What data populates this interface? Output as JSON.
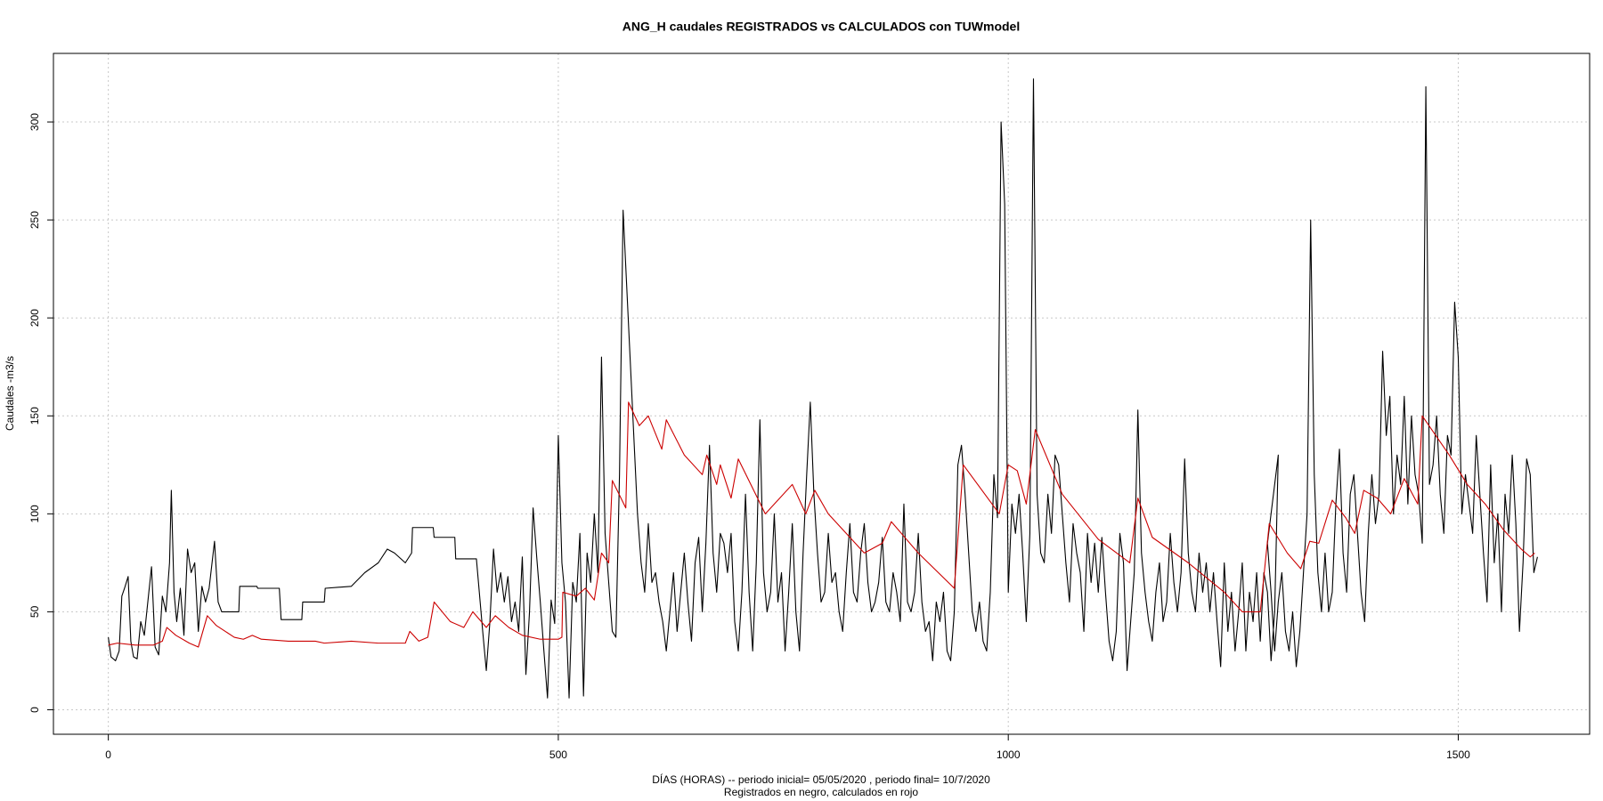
{
  "chart_data": {
    "type": "line",
    "title": "ANG_H caudales REGISTRADOS vs CALCULADOS con TUWmodel",
    "xlabel": "DÍAS (HORAS) --  periodo inicial= 05/05/2020 ,  periodo final= 10/7/2020",
    "caption": "Registrados en negro, calculados en rojo",
    "ylabel": "Caudales -m3/s",
    "xlim": [
      -61,
      1646
    ],
    "ylim": [
      -12.5,
      335
    ],
    "xticks": [
      0,
      500,
      1000,
      1500
    ],
    "yticks": [
      0,
      50,
      100,
      150,
      200,
      250,
      300
    ],
    "grid": true,
    "series": [
      {
        "color": "#000000",
        "x": [
          0,
          3,
          8,
          12,
          15,
          18,
          22,
          25,
          28,
          32,
          36,
          40,
          45,
          48,
          52,
          56,
          60,
          64,
          68,
          70,
          73,
          76,
          80,
          84,
          88,
          92,
          96,
          100,
          104,
          108,
          112,
          118,
          122,
          126,
          145,
          146,
          165,
          166,
          190,
          192,
          215,
          216,
          240,
          241,
          270,
          285,
          300,
          310,
          318,
          330,
          337,
          338,
          361,
          362,
          385,
          386,
          409,
          416,
          420,
          424,
          428,
          432,
          436,
          440,
          444,
          448,
          452,
          456,
          460,
          464,
          468,
          472,
          476,
          480,
          484,
          488,
          492,
          496,
          500,
          504,
          508,
          512,
          516,
          520,
          524,
          528,
          532,
          536,
          540,
          544,
          548,
          552,
          556,
          560,
          564,
          568,
          572,
          588,
          592,
          596,
          600,
          604,
          608,
          612,
          616,
          620,
          624,
          628,
          632,
          636,
          640,
          644,
          648,
          652,
          656,
          660,
          664,
          668,
          672,
          676,
          680,
          684,
          688,
          692,
          696,
          700,
          704,
          708,
          712,
          716,
          720,
          724,
          728,
          732,
          736,
          740,
          744,
          748,
          752,
          756,
          760,
          764,
          768,
          772,
          776,
          780,
          784,
          788,
          792,
          796,
          800,
          804,
          808,
          812,
          816,
          820,
          824,
          828,
          832,
          836,
          840,
          844,
          848,
          852,
          856,
          860,
          864,
          868,
          872,
          876,
          880,
          884,
          888,
          892,
          896,
          900,
          904,
          908,
          912,
          916,
          920,
          924,
          928,
          932,
          936,
          940,
          944,
          948,
          952,
          956,
          960,
          964,
          968,
          972,
          976,
          980,
          984,
          988,
          992,
          996,
          1000,
          1004,
          1008,
          1012,
          1016,
          1020,
          1024,
          1028,
          1032,
          1036,
          1040,
          1044,
          1048,
          1052,
          1056,
          1060,
          1064,
          1068,
          1072,
          1076,
          1080,
          1084,
          1088,
          1092,
          1096,
          1100,
          1104,
          1108,
          1112,
          1116,
          1120,
          1124,
          1128,
          1132,
          1136,
          1140,
          1144,
          1148,
          1152,
          1156,
          1160,
          1164,
          1168,
          1172,
          1176,
          1180,
          1184,
          1188,
          1192,
          1196,
          1200,
          1204,
          1208,
          1212,
          1216,
          1220,
          1224,
          1228,
          1232,
          1236,
          1240,
          1244,
          1248,
          1252,
          1256,
          1260,
          1264,
          1268,
          1272,
          1276,
          1280,
          1284,
          1288,
          1292,
          1296,
          1300,
          1288,
          1292,
          1296,
          1300,
          1304,
          1308,
          1312,
          1316,
          1320,
          1324,
          1328,
          1332,
          1336,
          1340,
          1344,
          1348,
          1352,
          1356,
          1360,
          1364,
          1368,
          1372,
          1376,
          1380,
          1384,
          1388,
          1392,
          1396,
          1400,
          1404,
          1408,
          1412,
          1416,
          1420,
          1424,
          1428,
          1432,
          1436,
          1440,
          1444,
          1448,
          1452,
          1456,
          1460,
          1464,
          1468,
          1472,
          1476,
          1480,
          1484,
          1488,
          1492,
          1496,
          1500,
          1504,
          1508,
          1512,
          1516,
          1520,
          1524,
          1528,
          1532,
          1536,
          1540,
          1544,
          1548,
          1552,
          1556,
          1560,
          1564,
          1568,
          1572,
          1576,
          1580,
          1584,
          1588
        ],
        "values": [
          37,
          27,
          25,
          30,
          58,
          62,
          68,
          35,
          27,
          26,
          45,
          38,
          60,
          73,
          32,
          28,
          58,
          50,
          75,
          112,
          60,
          45,
          62,
          38,
          82,
          70,
          75,
          40,
          63,
          55,
          62,
          86,
          55,
          50,
          50,
          63,
          63,
          62,
          62,
          46,
          46,
          55,
          55,
          62,
          63,
          70,
          75,
          82,
          80,
          75,
          80,
          93,
          93,
          88,
          88,
          77,
          77,
          40,
          20,
          45,
          82,
          60,
          70,
          55,
          68,
          45,
          55,
          40,
          78,
          18,
          50,
          103,
          78,
          55,
          30,
          6,
          56,
          44,
          140,
          75,
          55,
          6,
          65,
          55,
          90,
          7,
          80,
          65,
          100,
          70,
          180,
          90,
          65,
          40,
          37,
          120,
          255,
          100,
          75,
          60,
          95,
          65,
          70,
          55,
          45,
          30,
          50,
          70,
          40,
          60,
          80,
          55,
          35,
          75,
          88,
          50,
          85,
          135,
          80,
          60,
          90,
          85,
          70,
          90,
          45,
          30,
          60,
          110,
          60,
          30,
          75,
          148,
          70,
          50,
          60,
          100,
          55,
          70,
          30,
          60,
          95,
          50,
          30,
          80,
          120,
          157,
          110,
          80,
          55,
          60,
          90,
          65,
          70,
          50,
          40,
          70,
          95,
          60,
          55,
          80,
          95,
          65,
          50,
          55,
          65,
          88,
          55,
          50,
          70,
          60,
          45,
          105,
          55,
          50,
          60,
          90,
          55,
          40,
          45,
          25,
          55,
          45,
          60,
          30,
          25,
          50,
          125,
          135,
          110,
          80,
          50,
          40,
          55,
          35,
          30,
          60,
          120,
          98,
          300,
          258,
          60,
          105,
          90,
          110,
          80,
          45,
          90,
          322,
          110,
          80,
          75,
          110,
          90,
          130,
          125,
          100,
          75,
          55,
          95,
          80,
          70,
          40,
          90,
          65,
          85,
          60,
          88,
          60,
          35,
          25,
          40,
          90,
          75,
          20,
          45,
          70,
          153,
          80,
          60,
          45,
          35,
          60,
          75,
          45,
          55,
          90,
          65,
          50,
          70,
          128,
          80,
          60,
          50,
          80,
          60,
          75,
          50,
          70,
          45,
          22,
          75,
          40,
          60,
          30,
          50,
          75,
          30,
          60,
          45,
          70,
          35,
          70,
          60,
          25,
          50,
          130,
          85,
          60,
          30,
          55,
          70,
          40,
          30,
          50,
          22,
          40,
          70,
          100,
          250,
          120,
          70,
          50,
          80,
          50,
          60,
          105,
          133,
          80,
          60,
          110,
          120,
          90,
          60,
          45,
          90,
          120,
          95,
          110,
          183,
          140,
          160,
          100,
          130,
          115,
          160,
          105,
          150,
          120,
          110,
          85,
          318,
          115,
          125,
          150,
          110,
          90,
          140,
          130,
          208,
          180,
          100,
          120,
          105,
          90,
          140,
          110,
          80,
          55,
          125,
          75,
          100,
          50,
          110,
          90,
          130,
          95,
          40,
          75,
          128,
          120,
          70,
          78
        ]
      },
      {
        "color": "#cc0000",
        "x": [
          0,
          10,
          30,
          50,
          60,
          65,
          75,
          90,
          100,
          110,
          120,
          130,
          140,
          150,
          160,
          170,
          200,
          230,
          240,
          270,
          300,
          330,
          335,
          345,
          355,
          362,
          380,
          395,
          405,
          420,
          430,
          445,
          460,
          480,
          500,
          504,
          505,
          520,
          530,
          540,
          548,
          556,
          560,
          575,
          578,
          590,
          600,
          615,
          620,
          640,
          660,
          665,
          676,
          680,
          692,
          700,
          730,
          760,
          775,
          785,
          800,
          820,
          840,
          860,
          870,
          900,
          940,
          950,
          990,
          1000,
          1010,
          1020,
          1030,
          1060,
          1100,
          1135,
          1144,
          1160,
          1200,
          1240,
          1260,
          1280,
          1290,
          1310,
          1325,
          1335,
          1345,
          1360,
          1375,
          1385,
          1395,
          1410,
          1425,
          1440,
          1455,
          1460,
          1490,
          1510,
          1530,
          1550,
          1570,
          1580,
          1585
        ],
        "values": [
          33,
          34,
          33,
          33,
          35,
          42,
          38,
          34,
          32,
          48,
          43,
          40,
          37,
          36,
          38,
          36,
          35,
          35,
          34,
          35,
          34,
          34,
          40,
          35,
          37,
          55,
          45,
          42,
          50,
          42,
          48,
          42,
          38,
          36,
          36,
          37,
          60,
          58,
          62,
          56,
          80,
          75,
          117,
          103,
          157,
          145,
          150,
          133,
          148,
          130,
          120,
          130,
          115,
          125,
          108,
          128,
          100,
          115,
          100,
          112,
          100,
          90,
          80,
          85,
          96,
          80,
          62,
          125,
          100,
          125,
          122,
          105,
          143,
          110,
          87,
          75,
          108,
          88,
          75,
          60,
          50,
          50,
          95,
          80,
          72,
          86,
          85,
          107,
          98,
          90,
          112,
          108,
          100,
          118,
          105,
          150,
          130,
          115,
          105,
          92,
          82,
          78,
          80
        ]
      }
    ]
  }
}
